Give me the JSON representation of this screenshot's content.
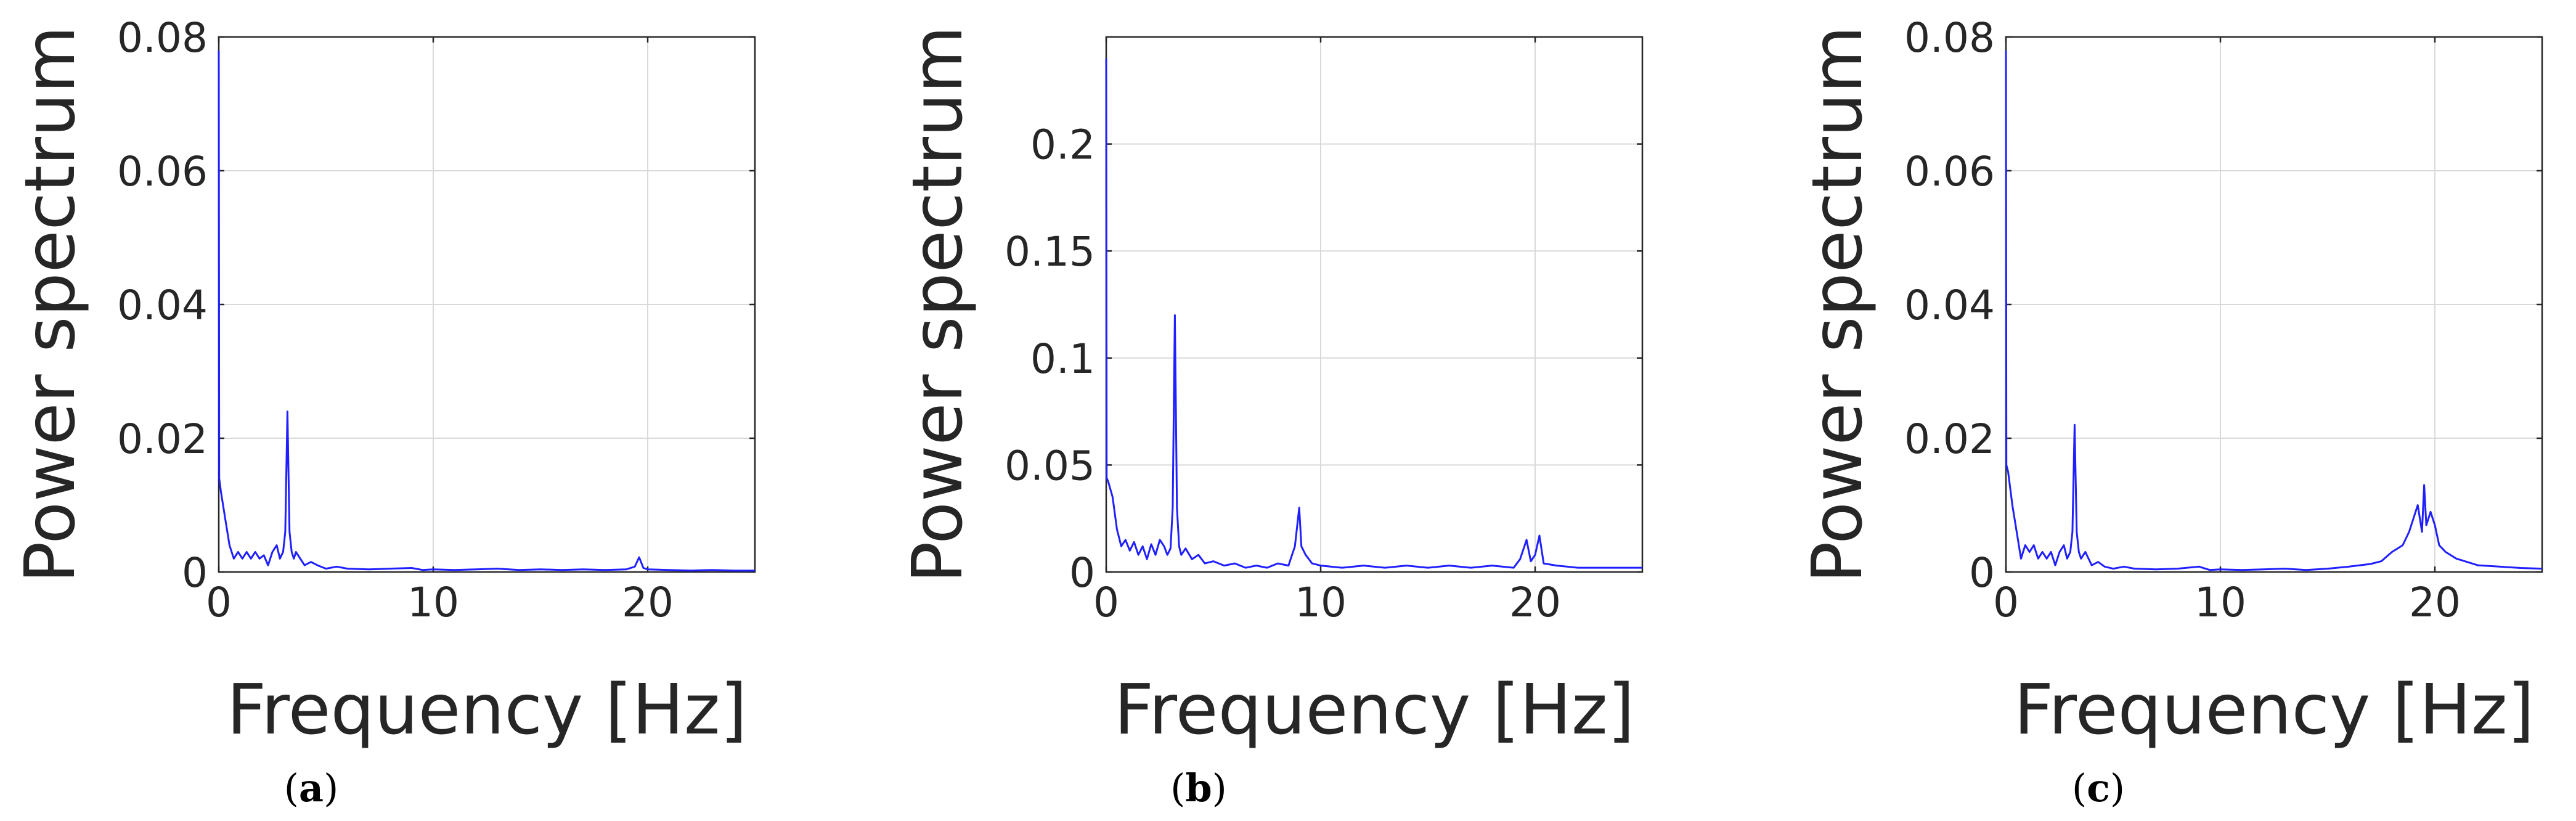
{
  "chart_data": [
    {
      "type": "line",
      "panel_label": "(a)",
      "xlabel": "Frequency [Hz]",
      "ylabel": "Power spectrum",
      "xlim": [
        0,
        25
      ],
      "ylim": [
        0,
        0.08
      ],
      "xticks": [
        0,
        10,
        20
      ],
      "yticks": [
        0,
        0.02,
        0.04,
        0.06,
        0.08
      ],
      "ytick_labels": [
        "0",
        "0.02",
        "0.04",
        "0.06",
        "0.08"
      ],
      "grid": true,
      "line_color": "#1f1fff",
      "series": [
        {
          "x": [
            0,
            0.02,
            0.1,
            0.3,
            0.5,
            0.7,
            0.9,
            1.1,
            1.3,
            1.5,
            1.7,
            1.9,
            2.1,
            2.3,
            2.5,
            2.7,
            2.85,
            3.0,
            3.1,
            3.2,
            3.3,
            3.4,
            3.5,
            3.6,
            3.8,
            4.0,
            4.3,
            4.6,
            5.0,
            5.5,
            6.0,
            7.0,
            8.0,
            9.0,
            9.5,
            10.0,
            11.0,
            12.0,
            13.0,
            14.0,
            15.0,
            16.0,
            17.0,
            18.0,
            19.0,
            19.4,
            19.6,
            19.8,
            20.0,
            21.0,
            22.0,
            23.0,
            24.0,
            25.0
          ],
          "y": [
            0.078,
            0.014,
            0.012,
            0.008,
            0.004,
            0.002,
            0.003,
            0.002,
            0.003,
            0.002,
            0.003,
            0.002,
            0.0025,
            0.001,
            0.003,
            0.004,
            0.002,
            0.003,
            0.006,
            0.024,
            0.006,
            0.003,
            0.002,
            0.003,
            0.002,
            0.001,
            0.0015,
            0.001,
            0.0005,
            0.0008,
            0.0005,
            0.0004,
            0.0005,
            0.0006,
            0.0003,
            0.0004,
            0.0003,
            0.0004,
            0.0005,
            0.0003,
            0.0004,
            0.0003,
            0.0004,
            0.0003,
            0.0004,
            0.0008,
            0.0022,
            0.0006,
            0.0004,
            0.0003,
            0.0002,
            0.0003,
            0.0002,
            0.0002
          ]
        }
      ]
    },
    {
      "type": "line",
      "panel_label": "(b)",
      "xlabel": "Frequency [Hz]",
      "ylabel": "Power spectrum",
      "xlim": [
        0,
        25
      ],
      "ylim": [
        0,
        0.25
      ],
      "xticks": [
        0,
        10,
        20
      ],
      "yticks": [
        0,
        0.05,
        0.1,
        0.15,
        0.2
      ],
      "ytick_labels": [
        "0",
        "0.05",
        "0.1",
        "0.15",
        "0.2"
      ],
      "grid": true,
      "line_color": "#1f1fff",
      "series": [
        {
          "x": [
            0,
            0.02,
            0.1,
            0.3,
            0.5,
            0.7,
            0.9,
            1.1,
            1.3,
            1.5,
            1.7,
            1.9,
            2.1,
            2.3,
            2.5,
            2.7,
            2.85,
            3.0,
            3.1,
            3.2,
            3.3,
            3.4,
            3.5,
            3.7,
            4.0,
            4.3,
            4.6,
            5.0,
            5.5,
            6.0,
            6.5,
            7.0,
            7.5,
            8.0,
            8.5,
            8.8,
            9.0,
            9.1,
            9.3,
            9.6,
            10.0,
            11.0,
            12.0,
            13.0,
            14.0,
            15.0,
            16.0,
            17.0,
            18.0,
            19.0,
            19.3,
            19.6,
            19.8,
            20.0,
            20.2,
            20.4,
            21.0,
            22.0,
            23.0,
            24.0,
            25.0
          ],
          "y": [
            0.24,
            0.044,
            0.042,
            0.035,
            0.02,
            0.012,
            0.015,
            0.01,
            0.014,
            0.008,
            0.012,
            0.006,
            0.013,
            0.008,
            0.015,
            0.012,
            0.008,
            0.011,
            0.03,
            0.12,
            0.03,
            0.012,
            0.008,
            0.011,
            0.006,
            0.008,
            0.004,
            0.005,
            0.003,
            0.004,
            0.002,
            0.003,
            0.002,
            0.004,
            0.003,
            0.012,
            0.03,
            0.012,
            0.008,
            0.004,
            0.003,
            0.002,
            0.003,
            0.002,
            0.003,
            0.002,
            0.003,
            0.002,
            0.003,
            0.002,
            0.006,
            0.015,
            0.005,
            0.008,
            0.017,
            0.004,
            0.003,
            0.002,
            0.002,
            0.002,
            0.002
          ]
        }
      ]
    },
    {
      "type": "line",
      "panel_label": "(c)",
      "xlabel": "Frequency [Hz]",
      "ylabel": "Power spectrum",
      "xlim": [
        0,
        25
      ],
      "ylim": [
        0,
        0.08
      ],
      "xticks": [
        0,
        10,
        20
      ],
      "yticks": [
        0,
        0.02,
        0.04,
        0.06,
        0.08
      ],
      "ytick_labels": [
        "0",
        "0.02",
        "0.04",
        "0.06",
        "0.08"
      ],
      "grid": true,
      "line_color": "#1f1fff",
      "series": [
        {
          "x": [
            0,
            0.02,
            0.1,
            0.3,
            0.5,
            0.7,
            0.9,
            1.1,
            1.3,
            1.5,
            1.7,
            1.9,
            2.1,
            2.3,
            2.5,
            2.7,
            2.85,
            3.0,
            3.1,
            3.2,
            3.3,
            3.4,
            3.5,
            3.7,
            4.0,
            4.3,
            4.6,
            5.0,
            5.5,
            6.0,
            7.0,
            8.0,
            9.0,
            9.5,
            10.0,
            11.0,
            12.0,
            13.0,
            14.0,
            15.0,
            16.0,
            17.0,
            17.5,
            18.0,
            18.5,
            18.8,
            19.0,
            19.2,
            19.4,
            19.5,
            19.6,
            19.8,
            20.0,
            20.2,
            20.5,
            21.0,
            21.5,
            22.0,
            23.0,
            24.0,
            25.0
          ],
          "y": [
            0.078,
            0.016,
            0.015,
            0.01,
            0.006,
            0.002,
            0.004,
            0.003,
            0.004,
            0.002,
            0.003,
            0.002,
            0.003,
            0.001,
            0.003,
            0.004,
            0.002,
            0.003,
            0.006,
            0.022,
            0.006,
            0.003,
            0.002,
            0.003,
            0.001,
            0.0015,
            0.0008,
            0.0005,
            0.0008,
            0.0005,
            0.0004,
            0.0005,
            0.0008,
            0.0003,
            0.0004,
            0.0003,
            0.0004,
            0.0005,
            0.0003,
            0.0005,
            0.0008,
            0.0012,
            0.0016,
            0.003,
            0.004,
            0.006,
            0.008,
            0.01,
            0.006,
            0.013,
            0.007,
            0.009,
            0.007,
            0.004,
            0.003,
            0.002,
            0.0015,
            0.001,
            0.0008,
            0.0006,
            0.0005
          ]
        }
      ]
    }
  ]
}
